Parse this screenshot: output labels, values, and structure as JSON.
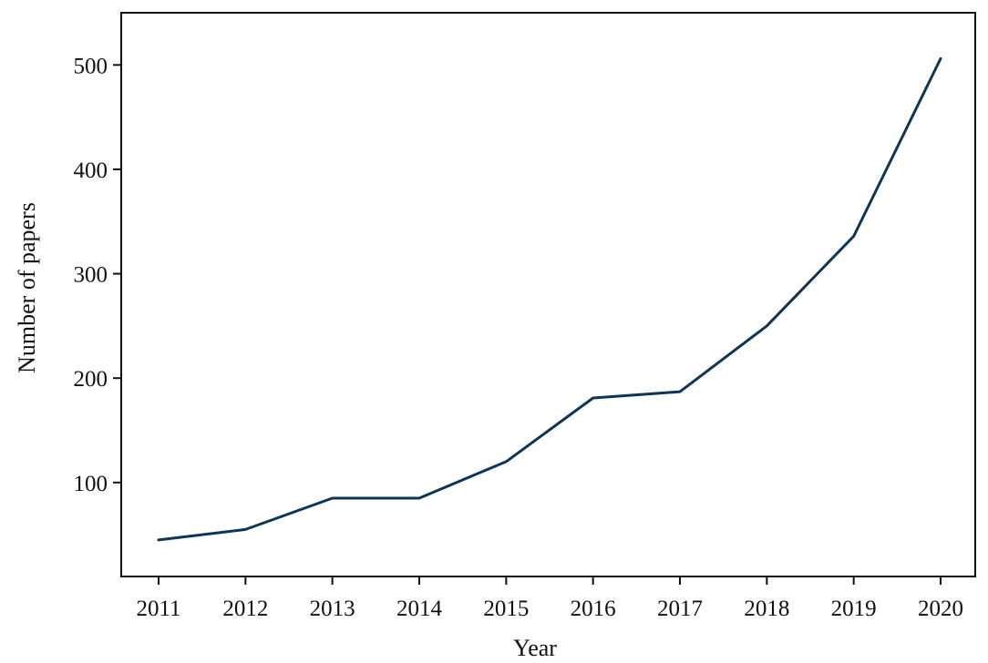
{
  "chart_data": {
    "type": "line",
    "title": "",
    "xlabel": "Year",
    "ylabel": "Number of papers",
    "categories": [
      "2011",
      "2012",
      "2013",
      "2014",
      "2015",
      "2016",
      "2017",
      "2018",
      "2019",
      "2020"
    ],
    "series": [
      {
        "values": [
          45,
          55,
          85,
          85,
          120,
          181,
          187,
          250,
          336,
          506
        ],
        "color": "#0f3553"
      }
    ],
    "yticks": [
      100,
      200,
      300,
      400,
      500
    ],
    "ylim": [
      10,
      550
    ],
    "grid": false,
    "legend": "none"
  }
}
